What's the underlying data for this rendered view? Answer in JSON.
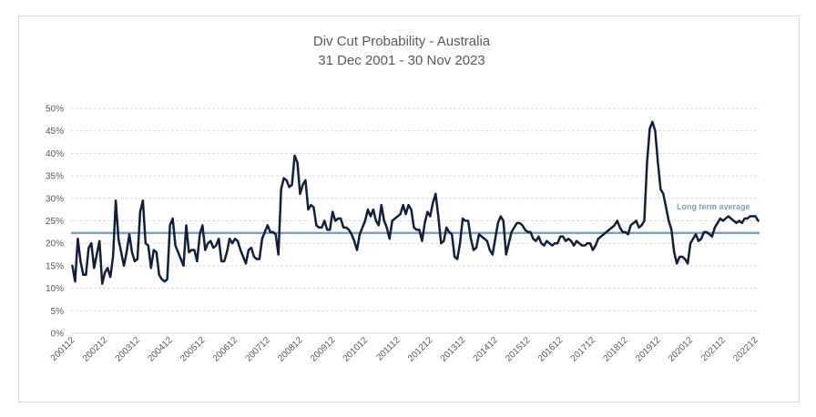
{
  "chart_data": {
    "type": "line",
    "title": "Div Cut Probability - Australia",
    "subtitle": "31 Dec 2001 - 30 Nov 2023",
    "xlabel": "",
    "ylabel": "",
    "ylim": [
      0,
      50
    ],
    "yticks": [
      "0%",
      "5%",
      "10%",
      "15%",
      "20%",
      "25%",
      "30%",
      "35%",
      "40%",
      "45%",
      "50%"
    ],
    "ytick_values": [
      0,
      5,
      10,
      15,
      20,
      25,
      30,
      35,
      40,
      45,
      50
    ],
    "xticks": [
      "200112",
      "200212",
      "200312",
      "200412",
      "200512",
      "200612",
      "200712",
      "200812",
      "200912",
      "201012",
      "201112",
      "201212",
      "201312",
      "201412",
      "201512",
      "201612",
      "201712",
      "201812",
      "201912",
      "202012",
      "202112",
      "202212"
    ],
    "grid": true,
    "long_term_average": 22.3,
    "annotation": "Long term average",
    "colors": {
      "series": "#0f1f3d",
      "average": "#7f9fc4",
      "grid": "#d9d9d9"
    },
    "series": [
      {
        "name": "Div Cut Probability",
        "monthly_values": [
          15.0,
          11.5,
          21.0,
          16.0,
          13.0,
          13.0,
          19.0,
          20.0,
          14.5,
          17.5,
          20.5,
          11.0,
          13.5,
          14.5,
          12.5,
          17.0,
          29.5,
          21.0,
          18.0,
          15.0,
          18.0,
          22.0,
          18.0,
          16.0,
          16.5,
          27.0,
          29.5,
          20.0,
          19.5,
          14.5,
          18.5,
          18.0,
          13.0,
          12.0,
          11.5,
          12.0,
          24.0,
          25.5,
          19.5,
          18.0,
          16.5,
          15.0,
          24.0,
          18.0,
          18.5,
          18.5,
          16.0,
          22.0,
          24.0,
          18.5,
          20.0,
          20.5,
          19.0,
          19.5,
          21.0,
          16.0,
          16.0,
          18.0,
          21.0,
          20.0,
          21.0,
          20.5,
          18.5,
          17.0,
          15.5,
          18.5,
          19.0,
          17.0,
          16.5,
          16.5,
          21.0,
          22.5,
          24.0,
          22.5,
          22.5,
          22.0,
          17.5,
          32.0,
          34.5,
          34.0,
          32.5,
          33.0,
          39.5,
          38.0,
          31.0,
          33.0,
          34.0,
          27.5,
          28.5,
          28.0,
          24.0,
          23.5,
          23.5,
          25.0,
          23.0,
          23.0,
          27.0,
          25.0,
          25.5,
          25.5,
          23.5,
          23.5,
          23.0,
          22.0,
          20.5,
          18.5,
          22.0,
          23.5,
          25.0,
          27.5,
          26.0,
          27.5,
          25.0,
          24.0,
          28.5,
          25.0,
          23.5,
          21.0,
          25.0,
          25.5,
          26.0,
          26.5,
          28.5,
          26.5,
          28.5,
          27.5,
          23.5,
          23.0,
          23.0,
          20.5,
          24.5,
          27.0,
          26.0,
          29.0,
          31.0,
          26.0,
          20.0,
          20.5,
          23.5,
          22.5,
          22.0,
          17.0,
          16.5,
          20.0,
          25.5,
          25.0,
          25.0,
          21.0,
          18.5,
          19.0,
          22.0,
          21.5,
          21.0,
          20.5,
          18.5,
          17.5,
          21.0,
          24.5,
          26.0,
          25.0,
          17.5,
          20.0,
          22.5,
          23.5,
          24.5,
          24.5,
          24.0,
          23.0,
          22.5,
          22.5,
          21.0,
          20.5,
          21.5,
          20.0,
          19.5,
          20.5,
          20.0,
          19.5,
          20.0,
          20.0,
          21.5,
          21.5,
          20.5,
          21.0,
          20.5,
          19.5,
          20.5,
          20.0,
          19.5,
          19.5,
          20.0,
          20.0,
          18.5,
          19.5,
          21.0,
          21.5,
          22.0,
          22.5,
          23.0,
          23.5,
          24.0,
          25.0,
          23.5,
          22.5,
          22.5,
          22.0,
          24.0,
          24.5,
          25.0,
          23.5,
          24.0,
          25.0,
          38.0,
          45.5,
          47.0,
          45.0,
          38.0,
          32.0,
          31.0,
          28.0,
          25.0,
          23.0,
          18.0,
          15.5,
          17.0,
          17.0,
          16.5,
          15.5,
          20.0,
          21.0,
          22.0,
          20.5,
          21.0,
          22.5,
          22.5,
          22.0,
          21.5,
          23.5,
          24.5,
          25.5,
          25.0,
          25.5,
          26.0,
          25.5,
          25.0,
          24.5,
          25.0,
          24.5,
          25.5,
          25.5,
          26.0,
          26.0,
          26.0,
          25.0
        ]
      }
    ]
  }
}
